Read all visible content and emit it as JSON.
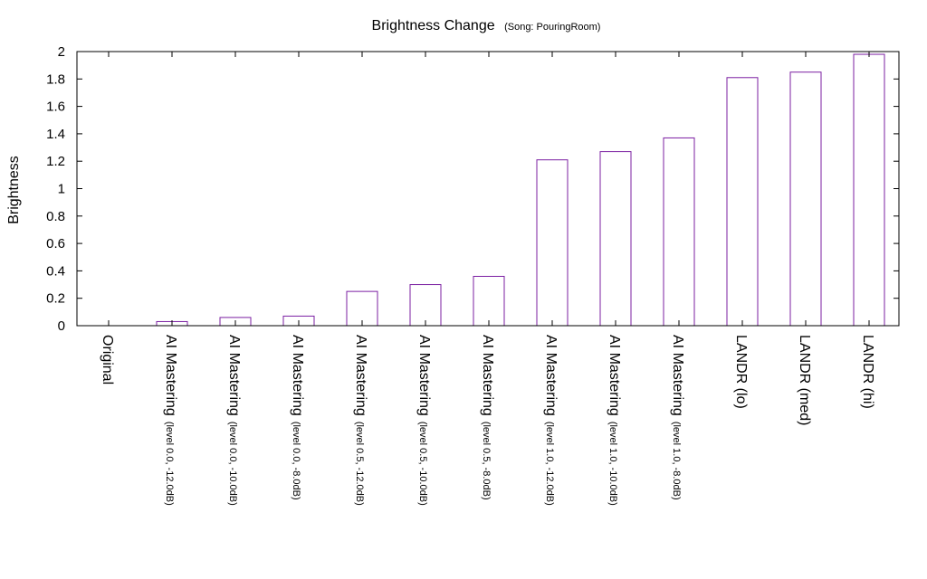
{
  "chart_data": {
    "type": "bar",
    "title": "Brightness Change",
    "subtitle": "(Song: PouringRoom)",
    "xlabel": "",
    "ylabel": "Brightness",
    "ylim": [
      0,
      2
    ],
    "yticks": [
      "0",
      "0.2",
      "0.4",
      "0.6",
      "0.8",
      "1",
      "1.2",
      "1.4",
      "1.6",
      "1.8",
      "2"
    ],
    "grid": false,
    "bar_color": "#7b1fa2",
    "categories": [
      {
        "main": "Original",
        "sub": ""
      },
      {
        "main": "AI Mastering",
        "sub": "(level 0.0, -12.0dB)"
      },
      {
        "main": "AI Mastering",
        "sub": "(level 0.0, -10.0dB)"
      },
      {
        "main": "AI Mastering",
        "sub": "(level 0.0, -8.0dB)"
      },
      {
        "main": "AI Mastering",
        "sub": "(level 0.5, -12.0dB)"
      },
      {
        "main": "AI Mastering",
        "sub": "(level 0.5, -10.0dB)"
      },
      {
        "main": "AI Mastering",
        "sub": "(level 0.5, -8.0dB)"
      },
      {
        "main": "AI Mastering",
        "sub": "(level 1.0, -12.0dB)"
      },
      {
        "main": "AI Mastering",
        "sub": "(level 1.0, -10.0dB)"
      },
      {
        "main": "AI Mastering",
        "sub": "(level 1.0, -8.0dB)"
      },
      {
        "main": "LANDR (lo)",
        "sub": ""
      },
      {
        "main": "LANDR (med)",
        "sub": ""
      },
      {
        "main": "LANDR (hi)",
        "sub": ""
      }
    ],
    "values": [
      0,
      0.03,
      0.06,
      0.07,
      0.25,
      0.3,
      0.36,
      1.21,
      1.27,
      1.37,
      1.81,
      1.85,
      1.98
    ]
  }
}
